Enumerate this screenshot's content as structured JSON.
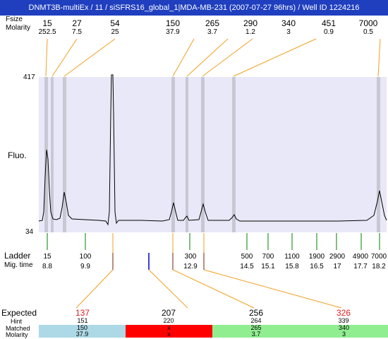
{
  "title": "DNMT3B-multiEx / 11 / siSFRS16_global_1|MDA-MB-231 (2007-07-27 96hrs) / Well ID 1224216",
  "top_labels": {
    "bp_label": "Fsize",
    "molarity_label": "Molarity"
  },
  "top_columns": [
    {
      "size": "15",
      "molarity": "252.5"
    },
    {
      "size": "27",
      "molarity": "7.5"
    },
    {
      "size": "54",
      "molarity": "25"
    },
    {
      "size": "150",
      "molarity": "37.9"
    },
    {
      "size": "265",
      "molarity": "3.7"
    },
    {
      "size": "290",
      "molarity": "1.2"
    },
    {
      "size": "340",
      "molarity": "3"
    },
    {
      "size": "451",
      "molarity": "0.9"
    },
    {
      "size": "7000",
      "molarity": "0.5"
    }
  ],
  "plot": {
    "y_max_label": "417",
    "y_min_label": "34",
    "y_axis_label": "Fluo."
  },
  "ladder": {
    "label": "Ladder",
    "mig_label": "Mig. time",
    "items": [
      {
        "bp": "15",
        "time": "8.8"
      },
      {
        "bp": "100",
        "time": "9.9"
      },
      {
        "bp": "300",
        "time": "12.9"
      },
      {
        "bp": "500",
        "time": "14.5"
      },
      {
        "bp": "700",
        "time": "15.1"
      },
      {
        "bp": "1100",
        "time": "15.8"
      },
      {
        "bp": "1900",
        "time": "16.5"
      },
      {
        "bp": "2900",
        "time": "17"
      },
      {
        "bp": "4900",
        "time": "17.7"
      },
      {
        "bp": "7000",
        "time": "18.2"
      }
    ]
  },
  "bottom_labels": {
    "expected": "Expected",
    "hint": "Hint",
    "matched": "Matched",
    "molarity": "Molarity"
  },
  "bottom_columns": [
    {
      "expected": "137",
      "hint": "151",
      "matched": "150",
      "molarity": "37.9",
      "expected_color": "#e02020",
      "band_color": "#add8e6"
    },
    {
      "expected": "207",
      "hint": "220",
      "matched": "x",
      "molarity": "x",
      "expected_color": "#000000",
      "band_color": "#ff0000"
    },
    {
      "expected": "256",
      "hint": "264",
      "matched": "265",
      "molarity": "3.7",
      "expected_color": "#000000",
      "band_color": "#90ee90"
    },
    {
      "expected": "326",
      "hint": "339",
      "matched": "340",
      "molarity": "3",
      "expected_color": "#e02020",
      "band_color": "#90ee90"
    }
  ],
  "colors": {
    "title_bg": "#1f3fbf",
    "plot_bg": "#e8e8f8",
    "highlight_band": "#c8c8d4",
    "connector": "#f0a020",
    "ladder_tick": "#008000",
    "sample_tick": "#0000cc"
  }
}
